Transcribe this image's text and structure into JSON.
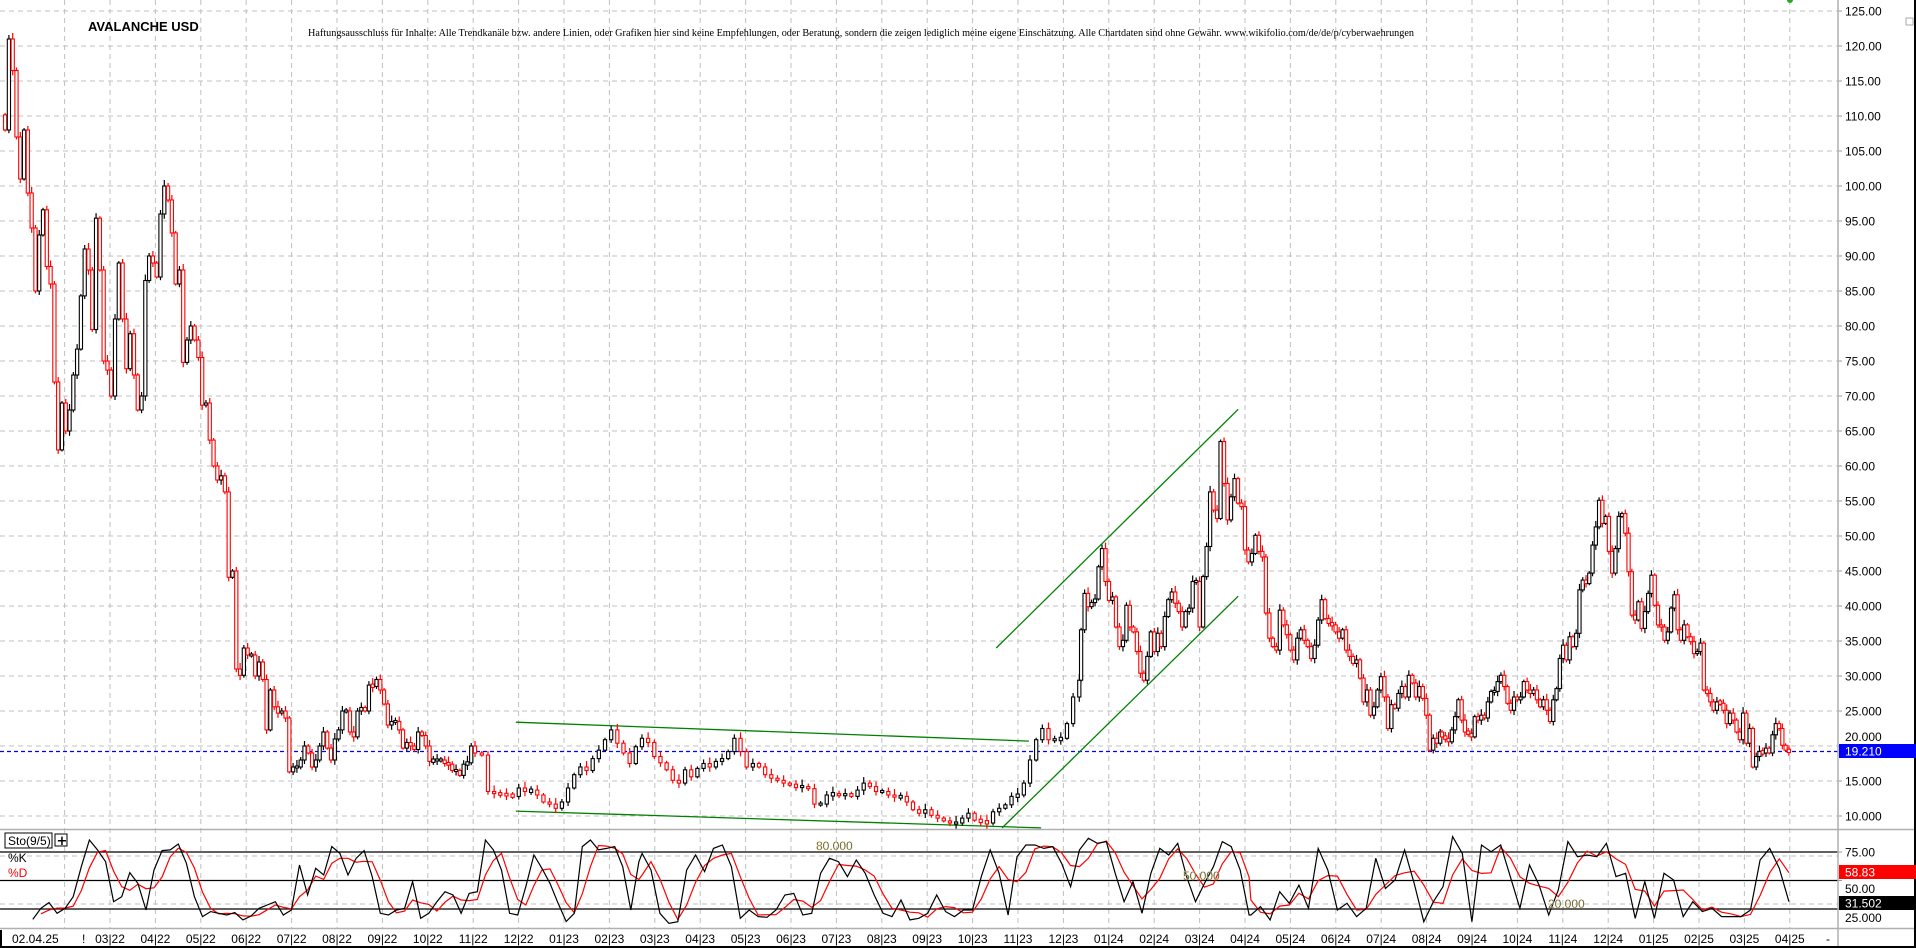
{
  "header": {
    "title": "AVALANCHE USD",
    "disclaimer": "Haftungsausschluss für Inhalte: Alle Trendkanäle bzw. andere Linien, oder Grafiken hier sind keine Empfehlungen, oder Beratung, sondern die zeigen lediglich meine eigene Einschätzung. Alle Chartdaten sind ohne Gewähr. www.wikifolio.com/de/de/p/cyberwaehrungen"
  },
  "chart_data": {
    "type": "candlestick",
    "title": "AVALANCHE USD",
    "x_unit": "months since Jan 2022",
    "y_unit": "USD",
    "ylim": [
      10,
      125
    ],
    "grid": true,
    "up_color": "#000000",
    "down_color": "#ff0000",
    "y_ticks": [
      125,
      120,
      115,
      110,
      105,
      100,
      95,
      90,
      85,
      80,
      75,
      70,
      65,
      60,
      55,
      50,
      45,
      40,
      35,
      30,
      25,
      20,
      15,
      10
    ],
    "y_tick_labels": [
      "125.00",
      "120.00",
      "115.00",
      "110.00",
      "105.00",
      "100.00",
      "95.00",
      "90.00",
      "85.00",
      "80.00",
      "75.00",
      "70.00",
      "65.00",
      "60.00",
      "55.00",
      "50.00",
      "45.000",
      "40.000",
      "35.000",
      "30.000",
      "25.000",
      "20.000",
      "15.000",
      "10.000"
    ],
    "segments": [
      {
        "x_start": -0.31,
        "x_end": 10.04,
        "close": [
          108,
          121,
          116.5,
          107,
          101,
          108,
          99,
          94,
          85,
          93,
          96.6,
          88.5,
          86,
          72,
          62.3,
          69,
          65,
          68,
          73,
          76.7,
          84.3,
          91,
          88,
          79.5,
          95.4,
          88,
          75,
          73.7,
          70,
          81,
          89,
          81,
          73.9,
          78.9,
          73,
          68,
          70,
          86.5,
          90,
          89,
          87,
          96,
          100,
          98,
          93.3,
          86,
          88,
          74.8,
          78,
          80,
          78,
          75.5,
          68.7,
          69,
          63.7,
          60,
          58,
          58.6,
          56.3,
          44.1,
          45,
          31,
          30.1,
          34,
          33,
          33,
          30,
          32,
          29.5,
          22.3,
          28,
          25.6,
          24.7,
          25,
          24,
          16.3,
          17,
          17,
          18,
          20,
          19,
          17,
          18,
          20,
          22,
          19.7,
          18,
          21,
          22.3,
          25,
          25,
          22,
          21.3,
          25,
          25.5,
          25,
          28.7,
          28.5,
          29.5,
          28,
          26,
          23,
          23.5,
          23.5,
          22.3,
          19.7,
          20.5,
          20,
          19.5,
          22,
          21.5,
          20,
          17.8,
          18,
          18,
          18,
          17.5,
          17.4,
          16.5,
          16.5,
          15.8,
          17.4,
          17.6,
          20,
          19
        ]
      },
      {
        "x_start": 10.19,
        "x_end": 23.35,
        "close": [
          18.7,
          13.5,
          13.2,
          13.1,
          13,
          12.8,
          14,
          13.5,
          13.7,
          13,
          12,
          11.7,
          11.1,
          12,
          14,
          15.9,
          17,
          16.5,
          18.2,
          19.4,
          20.9,
          22.3,
          20.4,
          19,
          17.5,
          19.9,
          21.1,
          20.5,
          18.5,
          17.6,
          16.6,
          15.1,
          14.7,
          16.6,
          15.6,
          16.8,
          17.5,
          17,
          17.8,
          18.2,
          19.2,
          21.1,
          19.2,
          17,
          17.5,
          17,
          15.9,
          15.4,
          15.1,
          14.7,
          14.4,
          14.2,
          14.2,
          13.9,
          11.7,
          11.7,
          13,
          13.2,
          12.9,
          13.2,
          12.8,
          13.7,
          14.7,
          14.2,
          13.5,
          13.5,
          13,
          12.7,
          12.8,
          12,
          10.9,
          10.4,
          10.9,
          10.1,
          9.7,
          9.3,
          9,
          9,
          9.7,
          10.4,
          9.4,
          9.2,
          9,
          10.6,
          11.1,
          11.6,
          12.8,
          13,
          14.7,
          18,
          20.9,
          22.5,
          20.9,
          20.9,
          21.1,
          23.2,
          27,
          29.4
        ]
      },
      {
        "x_start": 23.39,
        "x_end": 31.3,
        "close": [
          36.6,
          41.8,
          39.9,
          40.5,
          41,
          45.6,
          48.2,
          43.5,
          40.8,
          41.3,
          37,
          34.2,
          35.1,
          40.1,
          37,
          36.3,
          33.5,
          30.4,
          29.4,
          32.8,
          36.3,
          33.5,
          36.1,
          34.2,
          38.5,
          40.9,
          42,
          40.4,
          39.2,
          37,
          39.2,
          39.7,
          43.5,
          43.5,
          37,
          44.2,
          48.5,
          56.3,
          53.7,
          52.5,
          63.5,
          57.5,
          52.3,
          55.6,
          58.2,
          54.7,
          54.2,
          48,
          46.3,
          47.5,
          50.1,
          47.8,
          47,
          39,
          35.4,
          34.2,
          33.7,
          39.4,
          37.3,
          35.9,
          33.7,
          32.3,
          35.4,
          36.6,
          35.1,
          34.2,
          32.5,
          34.4,
          38,
          40.9,
          38.2,
          37.5,
          37.3,
          36.3,
          35.4,
          36.6,
          33.7,
          32.8,
          31.8,
          32.3,
          29.7,
          26.3,
          28,
          24.4,
          25.6,
          28,
          29.9,
          27,
          22.5,
          25.9,
          25.4,
          27.5,
          28.5,
          27,
          30.1,
          29,
          27,
          28.5,
          26.8,
          24.4,
          19.4,
          21.1,
          20.4,
          22
        ]
      },
      {
        "x_start": 31.34,
        "x_end": 38.98,
        "close": [
          21.3,
          21.1,
          20.6,
          22.3,
          24.2,
          26.6,
          23.7,
          22,
          21.8,
          21.3,
          24.2,
          23.7,
          24.4,
          24,
          26.3,
          27.8,
          27.8,
          29.2,
          30.1,
          28.5,
          26.1,
          25.1,
          27,
          26.6,
          27,
          29.2,
          28,
          27.5,
          28,
          26.6,
          25.6,
          26.6,
          25.1,
          23.5,
          26.6,
          28.2,
          32.5,
          34.4,
          32.3,
          35.6,
          34.2,
          36.1,
          42.3,
          43.7,
          43.2,
          44.7,
          48.7,
          51.3,
          55.1,
          51.8,
          52.8,
          47.8,
          44.7,
          48.2,
          52.8,
          53.2,
          50.4,
          44.9,
          38.7,
          38,
          40.6,
          36.8,
          39.2,
          41.8,
          44.4,
          40.1,
          37.3,
          37,
          35.1,
          36.3,
          39.7,
          41.6,
          36.6,
          35.1,
          37.3,
          35.6,
          34.9,
          33.2,
          33.5,
          34.7,
          28,
          27.5,
          26.3,
          25.1,
          26.3,
          26.1,
          25.1,
          23.2,
          24.7,
          23.7,
          22,
          20.9,
          24.7,
          20.4,
          22.5,
          17,
          18.5,
          19.2,
          19,
          19.7,
          19,
          21.6,
          23.2,
          22.5,
          20.1,
          19.4,
          19.21
        ]
      }
    ],
    "current_price": {
      "value": 19.21,
      "label": "19.210",
      "color": "#0000ff"
    },
    "trendlines": [
      {
        "name": "falling-channel-upper",
        "from": [
          10.94,
          23.4
        ],
        "to": [
          22.24,
          20.7
        ],
        "color": "#008000"
      },
      {
        "name": "falling-channel-lower",
        "from": [
          10.94,
          10.7
        ],
        "to": [
          22.51,
          8.3
        ],
        "color": "#008000"
      },
      {
        "name": "rising-channel-upper",
        "from": [
          21.52,
          34.0
        ],
        "to": [
          26.85,
          68.1
        ],
        "color": "#008000"
      },
      {
        "name": "rising-channel-lower",
        "from": [
          21.65,
          8.3
        ],
        "to": [
          26.85,
          41.4
        ],
        "color": "#008000"
      }
    ],
    "x_tick_start_month": 2,
    "x_tick_labels": [
      "03|22",
      "04|22",
      "05|22",
      "06|22",
      "07|22",
      "08|22",
      "09|22",
      "10|22",
      "11|22",
      "12|22",
      "01|23",
      "02|23",
      "03|23",
      "04|23",
      "05|23",
      "06|23",
      "07|23",
      "08|23",
      "09|23",
      "10|23",
      "11|23",
      "12|23",
      "01|24",
      "02|24",
      "03|24",
      "04|24",
      "05|24",
      "06|24",
      "07|24",
      "08|24",
      "09|24",
      "10|24",
      "11|24",
      "12|24",
      "01|25",
      "02|25",
      "03|25",
      "04|25"
    ],
    "date_stamp": "02.04.25",
    "axis_marker": "!",
    "axis_end_marker": "-",
    "stochastic": {
      "label": "Sto(9/5)",
      "add_button": "+",
      "k_label": "%K",
      "d_label": "%D",
      "k_color": "#000000",
      "d_color": "#ff0000",
      "d_period": 3,
      "ylim": [
        0,
        100
      ],
      "levels": [
        75,
        50,
        25
      ],
      "level_labels": [
        "75.00",
        "50.00",
        "25.000"
      ],
      "overlay_labels": [
        "80.000",
        "50.000",
        "20.000"
      ],
      "k_last_label": "31.502",
      "d_last_label": "58.83",
      "segments": [
        {
          "x_start": 0.3,
          "x_end": 13.65,
          "k": [
            15.9,
            25.6,
            30.6,
            21.2,
            25.6,
            35.8,
            62.1,
            85.5,
            76.8,
            66.5,
            31.4,
            35.8,
            56.9,
            47.5,
            24.1,
            59.2,
            76.2,
            76.8,
            82,
            65.1,
            35.8,
            18.3,
            22.7,
            21.2,
            19.7,
            21.8,
            15.4,
            18.9,
            25.6,
            28.5,
            31.4,
            19.7,
            24.1,
            63.6,
            37.3,
            60.7,
            54.8,
            79.7,
            73.8,
            54.8,
            69.5,
            76.2,
            53.4,
            21.2,
            19.7,
            24.1,
            25.6,
            49,
            16.8,
            21.2,
            31.4,
            40.2,
            37.3,
            21.2,
            38.7,
            40.2,
            85.5,
            76.8,
            59.2,
            21.2,
            19.7,
            44.6,
            72.4,
            60.7,
            47.5,
            30,
            14,
            21.2,
            79.7,
            85.5,
            76.8,
            78.2,
            79.7,
            62.1,
            24.1,
            66.5
          ]
        },
        {
          "x_start": 13.72,
          "x_end": 27.09,
          "k": [
            73.8,
            59.2,
            21.2,
            12.4,
            13.9,
            59.2,
            72.4,
            57.8,
            78.2,
            81.1,
            62.1,
            16.8,
            24.1,
            18.3,
            17.7,
            24.1,
            37.3,
            38.7,
            19.7,
            21.2,
            56.3,
            69.5,
            66.5,
            53.4,
            68,
            56.3,
            37.3,
            21.2,
            18.3,
            32.9,
            15.4,
            16.8,
            21.2,
            37.3,
            22.7,
            18.3,
            24.1,
            24.1,
            53.4,
            76.8,
            56.3,
            19.7,
            70.9,
            81.1,
            81.1,
            78.2,
            79.7,
            65.1,
            44.6,
            76.8,
            87,
            82.6,
            84.1,
            56.3,
            31.4,
            49,
            21.2,
            56.3,
            78.2,
            72.4,
            82.6,
            53.4,
            31.4,
            47.5,
            62.1,
            84.1,
            79.7,
            59.2,
            19.7
          ]
        },
        {
          "x_start": 27.13,
          "x_end": 38.98,
          "k": [
            19.7,
            27.1,
            15.4,
            40.2,
            30,
            46,
            25.6,
            78.2,
            59.2,
            24.1,
            30,
            18.3,
            25.6,
            69.5,
            43.1,
            50.4,
            76.8,
            47.5,
            13.9,
            31.4,
            44.6,
            88.5,
            73.8,
            13.9,
            81.1,
            75.3,
            81.1,
            53.4,
            25.6,
            63.6,
            46,
            19.7,
            41.7,
            84.1,
            70.9,
            72.4,
            70.9,
            82.6,
            53.4,
            56.3,
            16.8,
            49,
            16.8,
            56.3,
            50.4,
            18.3,
            31.4,
            22.7,
            25.6,
            18.3,
            18.3,
            18.3,
            24.1,
            68,
            78.2,
            60.7,
            31.5
          ]
        }
      ]
    }
  }
}
